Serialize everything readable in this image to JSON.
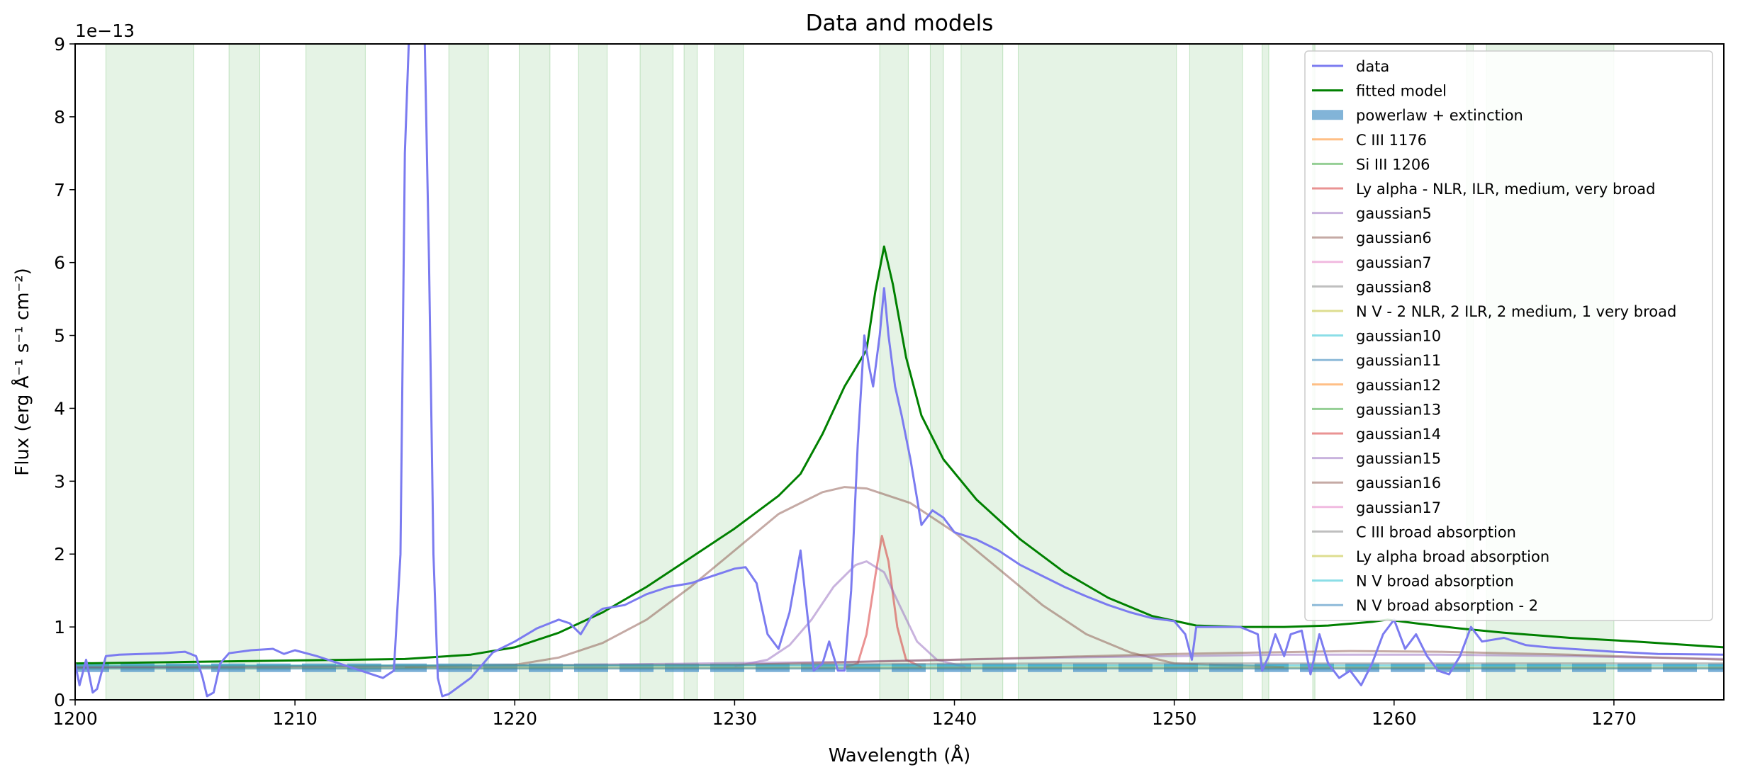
{
  "chart_data": {
    "type": "line",
    "title": "Data and models",
    "xlabel": "Wavelength (Å)",
    "ylabel": "Flux (erg Å⁻¹ s⁻¹ cm⁻²)",
    "y_offset_label": "1e−13",
    "y_scale": 1e-13,
    "xlim": [
      1200,
      1275
    ],
    "ylim": [
      0,
      9
    ],
    "x_ticks": [
      1200,
      1210,
      1220,
      1230,
      1240,
      1250,
      1260,
      1270
    ],
    "y_ticks": [
      0,
      1,
      2,
      3,
      4,
      5,
      6,
      7,
      8,
      9
    ],
    "grid": false,
    "legend_position": "upper right",
    "series": [
      {
        "name": "data",
        "kind": "line",
        "color": "#7b7bf0",
        "width": 3,
        "points": [
          [
            1200,
            0.5
          ],
          [
            1200.2,
            0.2
          ],
          [
            1200.5,
            0.55
          ],
          [
            1200.8,
            0.1
          ],
          [
            1201,
            0.15
          ],
          [
            1201.4,
            0.6
          ],
          [
            1202,
            0.62
          ],
          [
            1203,
            0.63
          ],
          [
            1204,
            0.64
          ],
          [
            1205,
            0.66
          ],
          [
            1205.5,
            0.6
          ],
          [
            1205.8,
            0.3
          ],
          [
            1206,
            0.05
          ],
          [
            1206.3,
            0.1
          ],
          [
            1206.6,
            0.5
          ],
          [
            1207,
            0.64
          ],
          [
            1208,
            0.68
          ],
          [
            1209,
            0.7
          ],
          [
            1209.5,
            0.63
          ],
          [
            1210,
            0.68
          ],
          [
            1211,
            0.6
          ],
          [
            1212,
            0.5
          ],
          [
            1213,
            0.4
          ],
          [
            1214,
            0.3
          ],
          [
            1214.5,
            0.4
          ],
          [
            1214.8,
            2.0
          ],
          [
            1215,
            7.5
          ],
          [
            1215.2,
            9.2
          ],
          [
            1215.6,
            9.5
          ],
          [
            1215.9,
            9.1
          ],
          [
            1216.1,
            6.0
          ],
          [
            1216.3,
            2.0
          ],
          [
            1216.5,
            0.3
          ],
          [
            1216.7,
            0.05
          ],
          [
            1217,
            0.08
          ],
          [
            1218,
            0.3
          ],
          [
            1219,
            0.65
          ],
          [
            1220,
            0.8
          ],
          [
            1221,
            0.98
          ],
          [
            1222,
            1.1
          ],
          [
            1222.5,
            1.05
          ],
          [
            1223,
            0.9
          ],
          [
            1223.5,
            1.15
          ],
          [
            1224,
            1.25
          ],
          [
            1225,
            1.3
          ],
          [
            1226,
            1.45
          ],
          [
            1227,
            1.55
          ],
          [
            1228,
            1.6
          ],
          [
            1229,
            1.7
          ],
          [
            1230,
            1.8
          ],
          [
            1230.5,
            1.82
          ],
          [
            1231,
            1.6
          ],
          [
            1231.5,
            0.9
          ],
          [
            1232,
            0.7
          ],
          [
            1232.5,
            1.2
          ],
          [
            1233,
            2.05
          ],
          [
            1233.3,
            1.2
          ],
          [
            1233.6,
            0.4
          ],
          [
            1234,
            0.5
          ],
          [
            1234.3,
            0.8
          ],
          [
            1234.7,
            0.4
          ],
          [
            1235,
            0.4
          ],
          [
            1235.3,
            1.5
          ],
          [
            1235.6,
            3.5
          ],
          [
            1235.9,
            5.0
          ],
          [
            1236.1,
            4.6
          ],
          [
            1236.3,
            4.3
          ],
          [
            1236.6,
            5.0
          ],
          [
            1236.8,
            5.65
          ],
          [
            1237.0,
            5.0
          ],
          [
            1237.3,
            4.3
          ],
          [
            1237.6,
            3.9
          ],
          [
            1238,
            3.3
          ],
          [
            1238.5,
            2.4
          ],
          [
            1239,
            2.6
          ],
          [
            1239.5,
            2.5
          ],
          [
            1240,
            2.3
          ],
          [
            1241,
            2.2
          ],
          [
            1242,
            2.05
          ],
          [
            1243,
            1.85
          ],
          [
            1244,
            1.7
          ],
          [
            1245,
            1.55
          ],
          [
            1246,
            1.42
          ],
          [
            1247,
            1.3
          ],
          [
            1248,
            1.2
          ],
          [
            1249,
            1.12
          ],
          [
            1250,
            1.08
          ],
          [
            1250.5,
            0.9
          ],
          [
            1250.8,
            0.55
          ],
          [
            1251,
            1.0
          ],
          [
            1252,
            1.0
          ],
          [
            1253,
            1.0
          ],
          [
            1253.8,
            0.9
          ],
          [
            1254,
            0.4
          ],
          [
            1254.3,
            0.6
          ],
          [
            1254.6,
            0.9
          ],
          [
            1255,
            0.6
          ],
          [
            1255.3,
            0.9
          ],
          [
            1255.8,
            0.95
          ],
          [
            1256.2,
            0.35
          ],
          [
            1256.6,
            0.9
          ],
          [
            1257,
            0.5
          ],
          [
            1257.5,
            0.3
          ],
          [
            1258,
            0.4
          ],
          [
            1258.5,
            0.2
          ],
          [
            1259,
            0.5
          ],
          [
            1259.5,
            0.9
          ],
          [
            1260,
            1.1
          ],
          [
            1260.5,
            0.7
          ],
          [
            1261,
            0.9
          ],
          [
            1261.5,
            0.6
          ],
          [
            1262,
            0.4
          ],
          [
            1262.5,
            0.35
          ],
          [
            1263,
            0.6
          ],
          [
            1263.5,
            1.0
          ],
          [
            1264,
            0.8
          ],
          [
            1265,
            0.85
          ],
          [
            1266,
            0.75
          ],
          [
            1267,
            0.72
          ],
          [
            1268,
            0.7
          ],
          [
            1269,
            0.68
          ],
          [
            1270,
            0.66
          ],
          [
            1272,
            0.63
          ],
          [
            1275,
            0.62
          ]
        ]
      },
      {
        "name": "fitted model",
        "kind": "line",
        "color": "#008000",
        "width": 3,
        "points": [
          [
            1200,
            0.5
          ],
          [
            1205,
            0.52
          ],
          [
            1210,
            0.54
          ],
          [
            1215,
            0.56
          ],
          [
            1218,
            0.62
          ],
          [
            1220,
            0.72
          ],
          [
            1222,
            0.92
          ],
          [
            1224,
            1.2
          ],
          [
            1226,
            1.55
          ],
          [
            1228,
            1.95
          ],
          [
            1230,
            2.35
          ],
          [
            1232,
            2.8
          ],
          [
            1233,
            3.1
          ],
          [
            1234,
            3.65
          ],
          [
            1235,
            4.3
          ],
          [
            1236,
            4.8
          ],
          [
            1236.4,
            5.6
          ],
          [
            1236.8,
            6.22
          ],
          [
            1237.2,
            5.7
          ],
          [
            1237.8,
            4.7
          ],
          [
            1238.5,
            3.9
          ],
          [
            1239.5,
            3.3
          ],
          [
            1241,
            2.75
          ],
          [
            1243,
            2.2
          ],
          [
            1245,
            1.75
          ],
          [
            1247,
            1.4
          ],
          [
            1249,
            1.15
          ],
          [
            1251,
            1.02
          ],
          [
            1253,
            1.0
          ],
          [
            1255,
            1.0
          ],
          [
            1257,
            1.02
          ],
          [
            1259,
            1.07
          ],
          [
            1259.7,
            1.1
          ],
          [
            1261,
            1.05
          ],
          [
            1263,
            0.98
          ],
          [
            1265,
            0.92
          ],
          [
            1268,
            0.85
          ],
          [
            1271,
            0.8
          ],
          [
            1275,
            0.72
          ]
        ]
      },
      {
        "name": "powerlaw + extinction",
        "kind": "dashband",
        "color": "#4d94c8",
        "value": 0.44
      },
      {
        "name": "C III 1176",
        "kind": "line",
        "color": "#ff7f0e"
      },
      {
        "name": "Si III 1206",
        "kind": "line",
        "color": "#2ca02c"
      },
      {
        "name": "Ly alpha - NLR, ILR,  medium,  very broad",
        "kind": "line",
        "color": "#d62728",
        "points": [
          [
            1235,
            0.45
          ],
          [
            1235.6,
            0.5
          ],
          [
            1236.0,
            0.9
          ],
          [
            1236.4,
            1.7
          ],
          [
            1236.7,
            2.25
          ],
          [
            1237.0,
            1.9
          ],
          [
            1237.4,
            1.0
          ],
          [
            1237.8,
            0.55
          ],
          [
            1238.5,
            0.45
          ]
        ]
      },
      {
        "name": "gaussian5",
        "kind": "line",
        "color": "#9467bd",
        "points": [
          [
            1230,
            0.46
          ],
          [
            1231.5,
            0.55
          ],
          [
            1232.5,
            0.75
          ],
          [
            1233.5,
            1.1
          ],
          [
            1234.5,
            1.55
          ],
          [
            1235.5,
            1.85
          ],
          [
            1236,
            1.9
          ],
          [
            1236.8,
            1.75
          ],
          [
            1237.5,
            1.3
          ],
          [
            1238.3,
            0.8
          ],
          [
            1239.2,
            0.55
          ],
          [
            1240.5,
            0.45
          ]
        ]
      },
      {
        "name": "gaussian6",
        "kind": "line",
        "color": "#8c564b",
        "points": [
          [
            1215,
            0.45
          ],
          [
            1220,
            0.48
          ],
          [
            1222,
            0.58
          ],
          [
            1224,
            0.78
          ],
          [
            1226,
            1.1
          ],
          [
            1228,
            1.55
          ],
          [
            1230,
            2.05
          ],
          [
            1232,
            2.55
          ],
          [
            1234,
            2.85
          ],
          [
            1235,
            2.92
          ],
          [
            1236,
            2.9
          ],
          [
            1238,
            2.7
          ],
          [
            1240,
            2.3
          ],
          [
            1242,
            1.8
          ],
          [
            1244,
            1.3
          ],
          [
            1246,
            0.9
          ],
          [
            1248,
            0.65
          ],
          [
            1250,
            0.5
          ],
          [
            1255,
            0.45
          ]
        ]
      },
      {
        "name": "gaussian7",
        "kind": "line",
        "color": "#e377c2"
      },
      {
        "name": "gaussian8",
        "kind": "line",
        "color": "#7f7f7f"
      },
      {
        "name": "N V - 2 NLR, 2 ILR, 2 medium, 1 very broad",
        "kind": "line",
        "color": "#bcbd22",
        "points": [
          [
            1200,
            0.44
          ],
          [
            1275,
            0.44
          ]
        ]
      },
      {
        "name": "gaussian10",
        "kind": "line",
        "color": "#17becf"
      },
      {
        "name": "gaussian11",
        "kind": "line",
        "color": "#1f77b4"
      },
      {
        "name": "gaussian12",
        "kind": "line",
        "color": "#ff7f0e"
      },
      {
        "name": "gaussian13",
        "kind": "line",
        "color": "#2ca02c"
      },
      {
        "name": "gaussian14",
        "kind": "line",
        "color": "#d62728"
      },
      {
        "name": "gaussian15",
        "kind": "line",
        "color": "#9467bd",
        "points": [
          [
            1200,
            0.45
          ],
          [
            1220,
            0.47
          ],
          [
            1235,
            0.52
          ],
          [
            1245,
            0.58
          ],
          [
            1255,
            0.62
          ],
          [
            1262,
            0.62
          ],
          [
            1268,
            0.6
          ],
          [
            1275,
            0.56
          ]
        ]
      },
      {
        "name": "gaussian16",
        "kind": "line",
        "color": "#8c564b",
        "points": [
          [
            1200,
            0.45
          ],
          [
            1230,
            0.48
          ],
          [
            1240,
            0.55
          ],
          [
            1250,
            0.63
          ],
          [
            1258,
            0.67
          ],
          [
            1262,
            0.66
          ],
          [
            1268,
            0.62
          ],
          [
            1275,
            0.55
          ]
        ]
      },
      {
        "name": "gaussian17",
        "kind": "line",
        "color": "#e377c2"
      },
      {
        "name": "C III broad absorption",
        "kind": "line",
        "color": "#7f7f7f",
        "points": [
          [
            1200,
            0.46
          ],
          [
            1230,
            0.48
          ],
          [
            1245,
            0.5
          ],
          [
            1260,
            0.5
          ],
          [
            1275,
            0.5
          ]
        ]
      },
      {
        "name": "Ly alpha broad absorption",
        "kind": "line",
        "color": "#bcbd22"
      },
      {
        "name": "N V broad absorption",
        "kind": "line",
        "color": "#17becf",
        "points": [
          [
            1200,
            0.47
          ],
          [
            1275,
            0.47
          ]
        ]
      },
      {
        "name": "N V broad absorption - 2",
        "kind": "line",
        "color": "#1f77b4",
        "points": [
          [
            1200,
            0.43
          ],
          [
            1275,
            0.43
          ]
        ]
      }
    ],
    "fit_regions": [
      [
        1201.4,
        1205.4
      ],
      [
        1207.0,
        1208.4
      ],
      [
        1210.5,
        1213.2
      ],
      [
        1217.0,
        1218.8
      ],
      [
        1220.2,
        1221.6
      ],
      [
        1222.9,
        1224.2
      ],
      [
        1225.7,
        1227.2
      ],
      [
        1227.7,
        1228.3
      ],
      [
        1229.1,
        1230.4
      ],
      [
        1236.6,
        1237.9
      ],
      [
        1238.9,
        1239.5
      ],
      [
        1240.3,
        1242.2
      ],
      [
        1242.9,
        1250.1
      ],
      [
        1250.7,
        1253.1
      ],
      [
        1254.0,
        1254.3
      ],
      [
        1256.3,
        1256.4
      ],
      [
        1263.3,
        1263.6
      ],
      [
        1264.2,
        1270.0
      ]
    ],
    "fit_region_color": "#2ca02c"
  }
}
